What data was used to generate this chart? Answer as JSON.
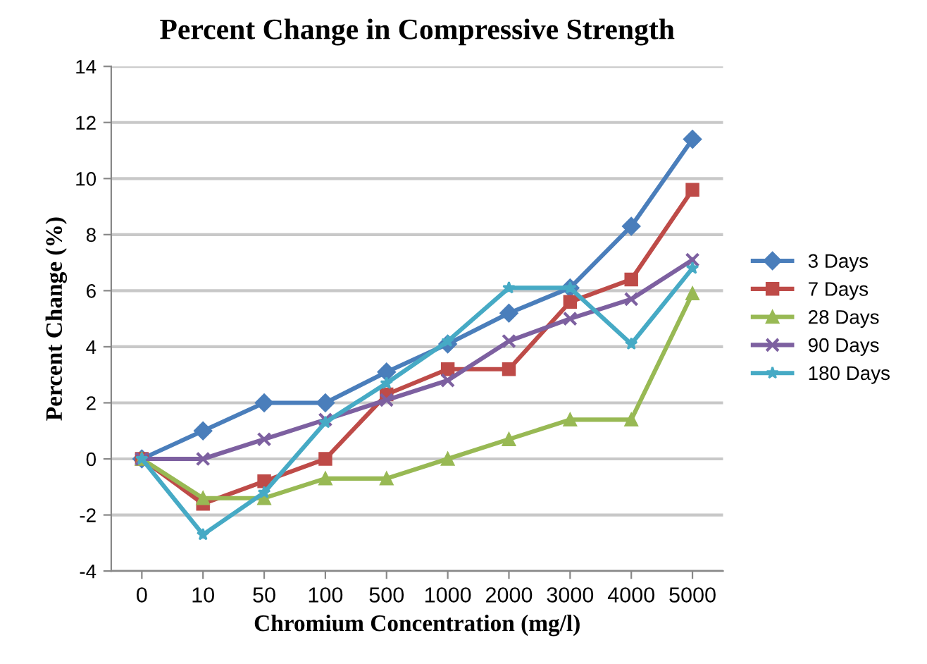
{
  "chart_data": {
    "type": "line",
    "title": "Percent Change in Compressive Strength",
    "xlabel": "Chromium Concentration (mg/l)",
    "ylabel": "Percent Change (%)",
    "categories": [
      "0",
      "10",
      "50",
      "100",
      "500",
      "1000",
      "2000",
      "3000",
      "4000",
      "5000"
    ],
    "series": [
      {
        "name": "3 Days",
        "color": "#4a7ebb",
        "marker": "diamond",
        "values": [
          0,
          1.0,
          2.0,
          2.0,
          3.1,
          4.1,
          5.2,
          6.1,
          8.3,
          11.4
        ]
      },
      {
        "name": "7 Days",
        "color": "#be4b48",
        "marker": "square",
        "values": [
          0,
          -1.6,
          -0.8,
          0,
          2.3,
          3.2,
          3.2,
          5.6,
          6.4,
          9.6
        ]
      },
      {
        "name": "28 Days",
        "color": "#98b954",
        "marker": "triangle",
        "values": [
          0,
          -1.4,
          -1.4,
          -0.7,
          -0.7,
          0,
          0.7,
          1.4,
          1.4,
          5.9
        ]
      },
      {
        "name": "90 Days",
        "color": "#7d60a0",
        "marker": "cross",
        "values": [
          0,
          0,
          0.7,
          1.4,
          2.1,
          2.8,
          4.2,
          5.0,
          5.7,
          7.1
        ]
      },
      {
        "name": "180 Days",
        "color": "#46aac5",
        "marker": "star",
        "values": [
          0,
          -2.7,
          -1.2,
          1.3,
          2.7,
          4.2,
          6.1,
          6.1,
          4.1,
          6.8
        ]
      }
    ],
    "ylim": [
      -4,
      14
    ],
    "yticks": [
      -4,
      -2,
      0,
      2,
      4,
      6,
      8,
      10,
      12,
      14
    ],
    "grid": "y",
    "legend": "right",
    "line_style": "solid"
  }
}
